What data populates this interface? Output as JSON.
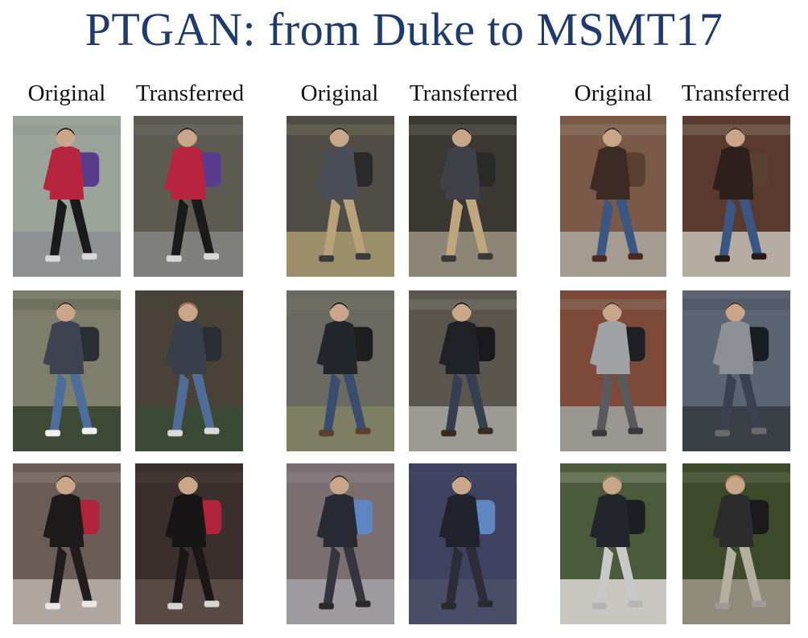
{
  "title": "PTGAN: from Duke to MSMT17",
  "column_labels": {
    "pair1_original": "Original",
    "pair1_transferred": "Transferred",
    "pair2_original": "Original",
    "pair2_transferred": "Transferred",
    "pair3_original": "Original",
    "pair3_transferred": "Transferred"
  },
  "tiles": [
    {
      "bg": "#9aa39a",
      "ground": "#8e9191",
      "top": "#b8243d",
      "pants": "#1a1a1a",
      "hair": "#2a1c1c",
      "bag": "#5a3c8f",
      "shoes": "#d8d8d8"
    },
    {
      "bg": "#5d5a52",
      "ground": "#7f807e",
      "top": "#b8243d",
      "pants": "#1a1a1a",
      "hair": "#2a1c1c",
      "bag": "#5a3c8f",
      "shoes": "#d8d8d8"
    },
    {
      "bg": "#4f4d45",
      "ground": "#9a8f6a",
      "top": "#4b4e57",
      "pants": "#b9a17a",
      "hair": "#1e1a18",
      "bag": "#2a2a2a",
      "shoes": "#3a3a3a"
    },
    {
      "bg": "#3b3733",
      "ground": "#8d8676",
      "top": "#3f4048",
      "pants": "#c0a67e",
      "hair": "#1e1a18",
      "bag": "#2a2a2a",
      "shoes": "#3a3a3a"
    },
    {
      "bg": "#7a5a46",
      "ground": "#a49c90",
      "top": "#3d2a24",
      "pants": "#3a5683",
      "hair": "#3a2a22",
      "bag": "#5a4030",
      "shoes": "#4a2a22"
    },
    {
      "bg": "#5a3a2e",
      "ground": "#b5aca2",
      "top": "#2e211d",
      "pants": "#3a5683",
      "hair": "#3a2a22",
      "bag": "#5a4030",
      "shoes": "#2a1a15"
    },
    {
      "bg": "#7d7f6a",
      "ground": "#3e4a36",
      "top": "#3f4250",
      "pants": "#4d6e9d",
      "hair": "#3a2a22",
      "bag": "#2b2d35",
      "shoes": "#f0f0f0"
    },
    {
      "bg": "#4a4238",
      "ground": "#3a4a35",
      "top": "#3a3d4a",
      "pants": "#4f6d97",
      "hair": "#a85a3a",
      "bag": "#2b2d35",
      "shoes": "#d9d9d9"
    },
    {
      "bg": "#6a6a62",
      "ground": "#7d7e62",
      "top": "#23262d",
      "pants": "#3b4d6e",
      "hair": "#181818",
      "bag": "#1f1f22",
      "shoes": "#5a4030"
    },
    {
      "bg": "#5a564e",
      "ground": "#9b9b93",
      "top": "#1f2127",
      "pants": "#363e52",
      "hair": "#181818",
      "bag": "#1a1a1c",
      "shoes": "#3a2a20"
    },
    {
      "bg": "#7d4a3a",
      "ground": "#9a9691",
      "top": "#a0a2a6",
      "pants": "#5a5a5e",
      "hair": "#4a3428",
      "bag": "#1e2026",
      "shoes": "#3a3a3a"
    },
    {
      "bg": "#5a6472",
      "ground": "#3b4046",
      "top": "#8c8f96",
      "pants": "#3a4153",
      "hair": "#3a2a22",
      "bag": "#1a1c24",
      "shoes": "#6a6a6a"
    },
    {
      "bg": "#6a5c56",
      "ground": "#b0a6a0",
      "top": "#1e1a1c",
      "pants": "#231c1e",
      "hair": "#3a2a22",
      "bag": "#b0233a",
      "shoes": "#e8e8e8"
    },
    {
      "bg": "#3b2f2e",
      "ground": "#5a4a45",
      "top": "#181516",
      "pants": "#1c1617",
      "hair": "#2a1c16",
      "bag": "#b0233a",
      "shoes": "#d5d5d5"
    },
    {
      "bg": "#7a6e70",
      "ground": "#9d9aa0",
      "top": "#2a2a34",
      "pants": "#34353e",
      "hair": "#3a2a22",
      "bag": "#5e86c2",
      "shoes": "#2a2a2a"
    },
    {
      "bg": "#3e4260",
      "ground": "#4a4d68",
      "top": "#22222c",
      "pants": "#2c2d38",
      "hair": "#1e1a18",
      "bag": "#5e86c2",
      "shoes": "#2a2a2a"
    },
    {
      "bg": "#4a5a3a",
      "ground": "#c9c6c0",
      "top": "#23252c",
      "pants": "#c8c8c8",
      "hair": "#8a6e50",
      "bag": "#1d1e24",
      "shoes": "#b5b5b5"
    },
    {
      "bg": "#3c4a2a",
      "ground": "#8f8a7a",
      "top": "#2c2c2c",
      "pants": "#b3b0a2",
      "hair": "#b58a4a",
      "bag": "#1a1a1c",
      "shoes": "#9a9a9a"
    }
  ]
}
